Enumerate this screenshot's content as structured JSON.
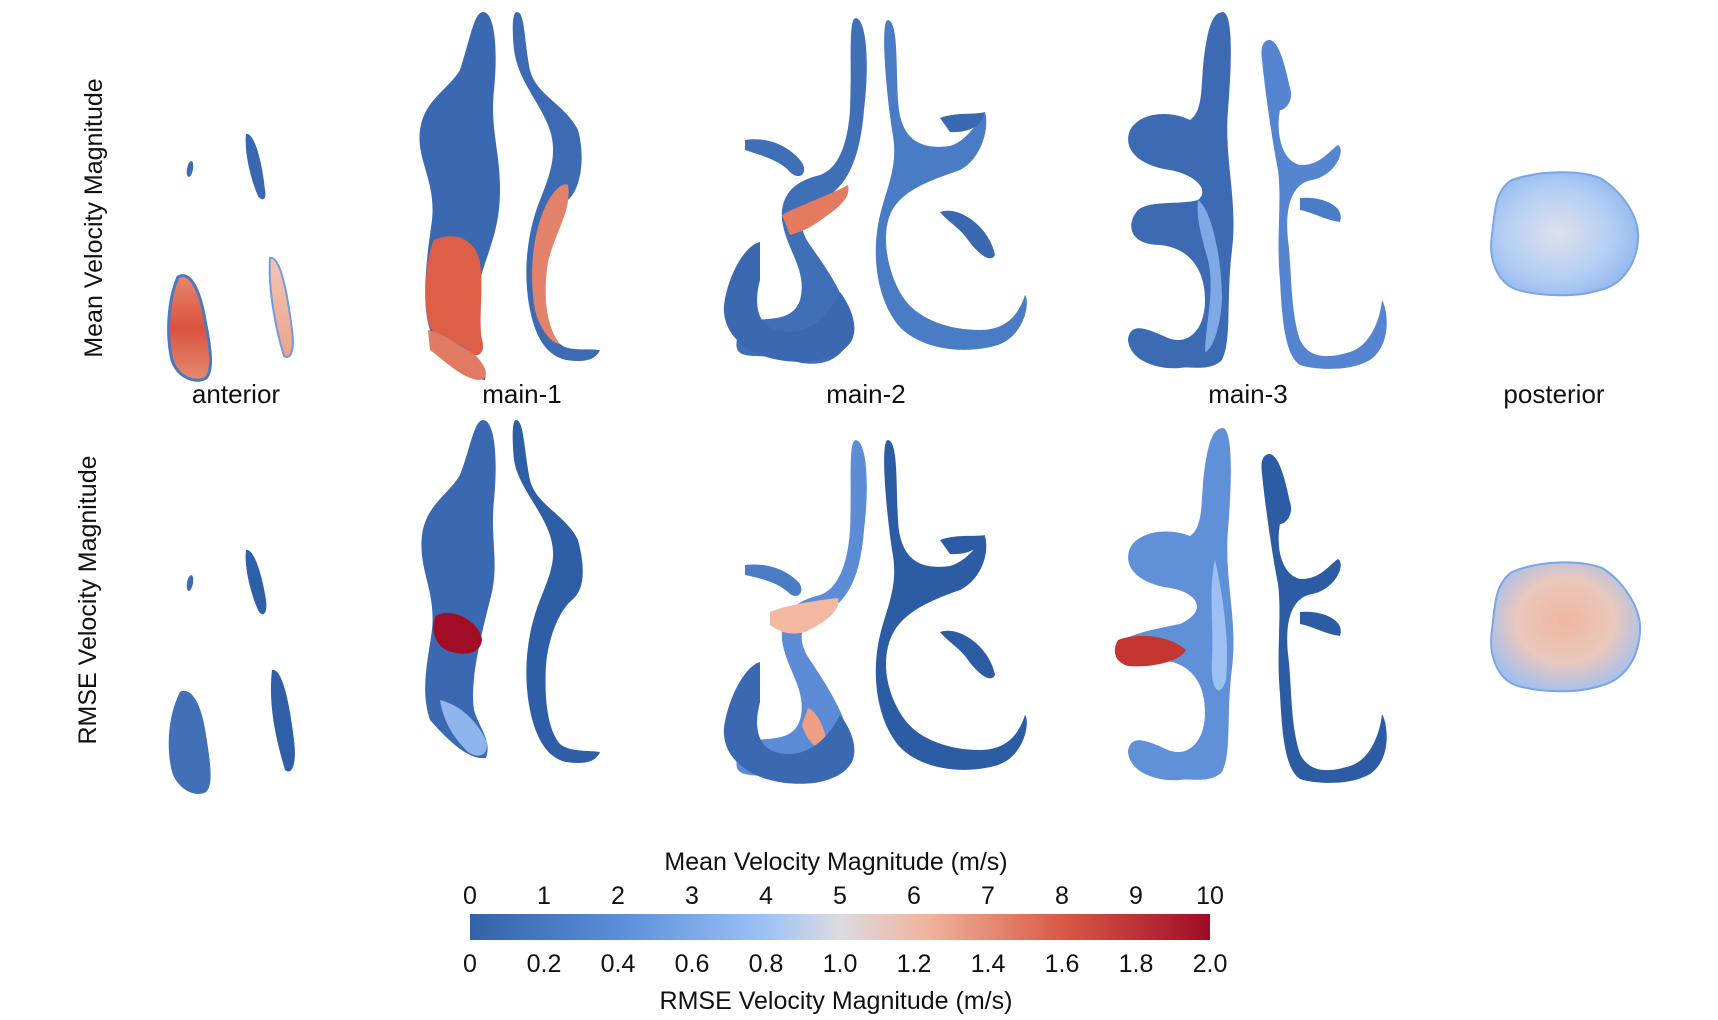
{
  "rows": [
    {
      "label": "Mean Velocity Magnitude"
    },
    {
      "label": "RMSE Velocity Magnitude"
    }
  ],
  "sections": [
    "anterior",
    "main-1",
    "main-2",
    "main-3",
    "posterior"
  ],
  "colorbar": {
    "top_title": "Mean Velocity Magnitude (m/s)",
    "top_ticks": [
      "0",
      "1",
      "2",
      "3",
      "4",
      "5",
      "6",
      "7",
      "8",
      "9",
      "10"
    ],
    "bottom_title": "RMSE Velocity Magnitude (m/s)",
    "bottom_ticks": [
      "0",
      "0.2",
      "0.4",
      "0.6",
      "0.8",
      "1.0",
      "1.2",
      "1.4",
      "1.6",
      "1.8",
      "2.0"
    ],
    "colormap": [
      "#3b67ab",
      "#5b8fd9",
      "#9dc1f5",
      "#e4d6cf",
      "#efa78c",
      "#d2523f",
      "#a10d24"
    ]
  }
}
